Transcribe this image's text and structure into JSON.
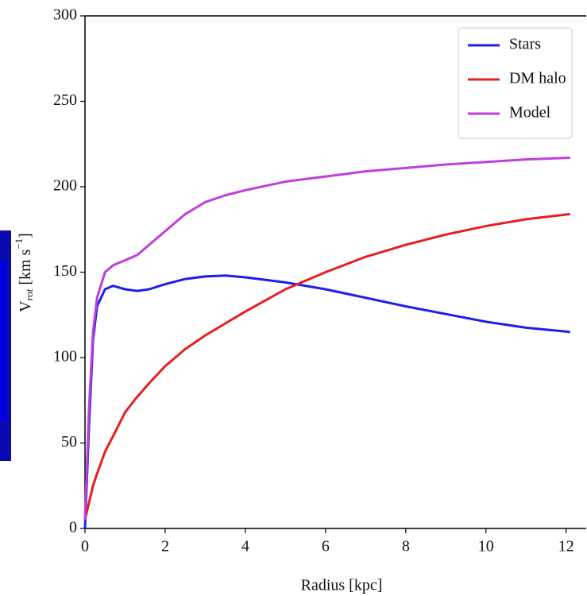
{
  "chart_data": {
    "type": "line",
    "xlabel": "Radius [kpc]",
    "ylabel": {
      "base": "V",
      "sub": "rot",
      "unit": "[km s",
      "sup": "−1",
      "end": "]"
    },
    "x": [
      0,
      0.1,
      0.2,
      0.3,
      0.5,
      0.7,
      1,
      1.3,
      1.6,
      2,
      2.5,
      3,
      3.5,
      4,
      5,
      6,
      7,
      8,
      9,
      10,
      11,
      12.1
    ],
    "series": [
      {
        "name": "Stars",
        "color": "#1f1fe6",
        "values": [
          0,
          60,
          110,
          130,
          140,
          142,
          140,
          139,
          140,
          143,
          146,
          147.5,
          148,
          147,
          144,
          140,
          135,
          130,
          125.5,
          121,
          117.5,
          115
        ]
      },
      {
        "name": "DM halo",
        "color": "#e61f1f",
        "values": [
          5,
          15,
          25,
          32,
          45,
          54,
          68,
          77,
          85,
          95,
          105,
          113,
          120,
          127,
          140,
          150,
          159,
          166,
          172,
          177,
          181,
          184
        ]
      },
      {
        "name": "Model",
        "color": "#bf3fd9",
        "values": [
          5,
          70,
          115,
          135,
          150,
          154,
          157,
          160,
          166,
          174,
          184,
          191,
          195,
          198,
          203,
          206,
          209,
          211,
          213,
          214.5,
          216,
          217
        ]
      }
    ],
    "xlim": [
      0,
      12.5
    ],
    "xticks": [
      0,
      2,
      4,
      6,
      8,
      10,
      12
    ],
    "ylim": [
      0,
      300
    ],
    "yticks": [
      0,
      50,
      100,
      150,
      200,
      250,
      300
    ],
    "legend": "upper right"
  }
}
